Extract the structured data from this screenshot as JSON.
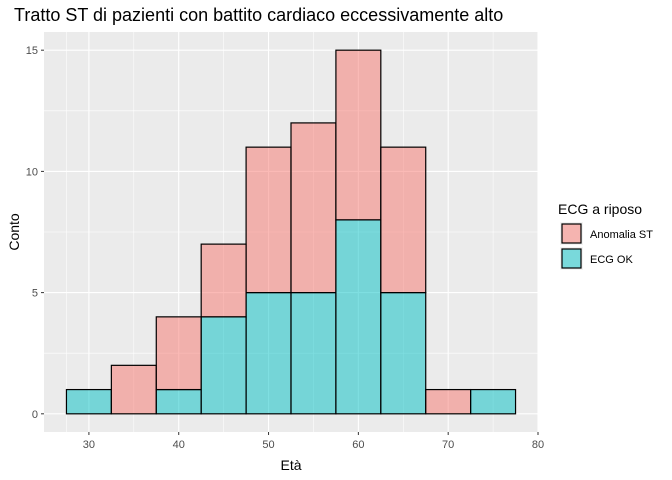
{
  "chart_data": {
    "type": "bar",
    "stacked": true,
    "title": "Tratto ST di pazienti con battito cardiaco eccessivamente alto",
    "xlabel": "Età",
    "ylabel": "Conto",
    "xlim": [
      25,
      80
    ],
    "ylim": [
      -0.75,
      15.75
    ],
    "xticks": [
      30,
      40,
      50,
      60,
      70,
      80
    ],
    "yticks": [
      0,
      5,
      10,
      15
    ],
    "bin_width": 5,
    "bins": [
      {
        "x0": 27.5,
        "x1": 32.5
      },
      {
        "x0": 32.5,
        "x1": 37.5
      },
      {
        "x0": 37.5,
        "x1": 42.5
      },
      {
        "x0": 42.5,
        "x1": 47.5
      },
      {
        "x0": 47.5,
        "x1": 52.5
      },
      {
        "x0": 52.5,
        "x1": 57.5
      },
      {
        "x0": 57.5,
        "x1": 62.5
      },
      {
        "x0": 62.5,
        "x1": 67.5
      },
      {
        "x0": 67.5,
        "x1": 72.5
      },
      {
        "x0": 72.5,
        "x1": 77.5
      }
    ],
    "series": [
      {
        "name": "ECG OK",
        "color": "#00BFC4",
        "values": [
          1,
          0,
          1,
          4,
          5,
          5,
          8,
          5,
          0,
          1
        ]
      },
      {
        "name": "Anomalia ST",
        "color": "#F8766D",
        "values": [
          0,
          2,
          3,
          3,
          6,
          7,
          7,
          6,
          1,
          0
        ]
      }
    ],
    "legend": {
      "title": "ECG a riposo",
      "position": "right",
      "entries": [
        {
          "label": "Anomalia ST",
          "color": "#F8766D"
        },
        {
          "label": "ECG OK",
          "color": "#00BFC4"
        }
      ]
    },
    "grid": true,
    "panel_background": "#EBEBEB",
    "bar_outline": "#000000"
  }
}
